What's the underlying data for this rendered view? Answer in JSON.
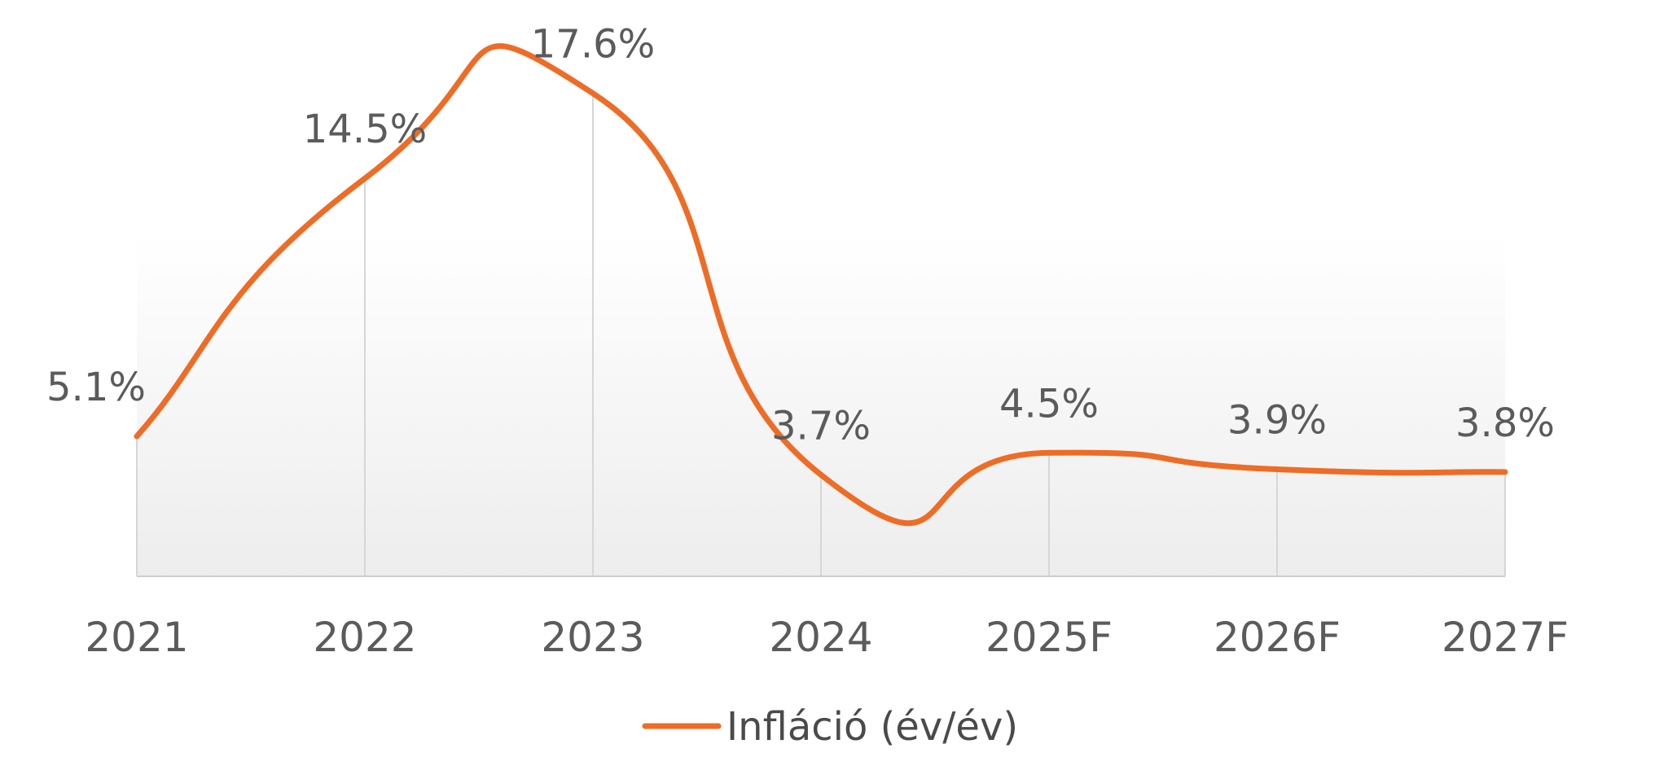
{
  "chart_data": {
    "type": "line",
    "title": "",
    "xlabel": "",
    "ylabel": "",
    "categories": [
      "2021",
      "2022",
      "2023",
      "2024",
      "2025F",
      "2026F",
      "2027F"
    ],
    "series": [
      {
        "name": "Infláció (év/év)",
        "values": [
          5.1,
          14.5,
          17.6,
          3.7,
          4.5,
          3.9,
          3.8
        ],
        "labels": [
          "5.1%",
          "14.5%",
          "17.6%",
          "3.7%",
          "4.5%",
          "3.9%",
          "3.8%"
        ],
        "color": "#ee6c25"
      }
    ],
    "ylim": [
      0,
      21
    ],
    "smooth": true,
    "vertical_gridlines": true,
    "legend": "bottom-center"
  }
}
